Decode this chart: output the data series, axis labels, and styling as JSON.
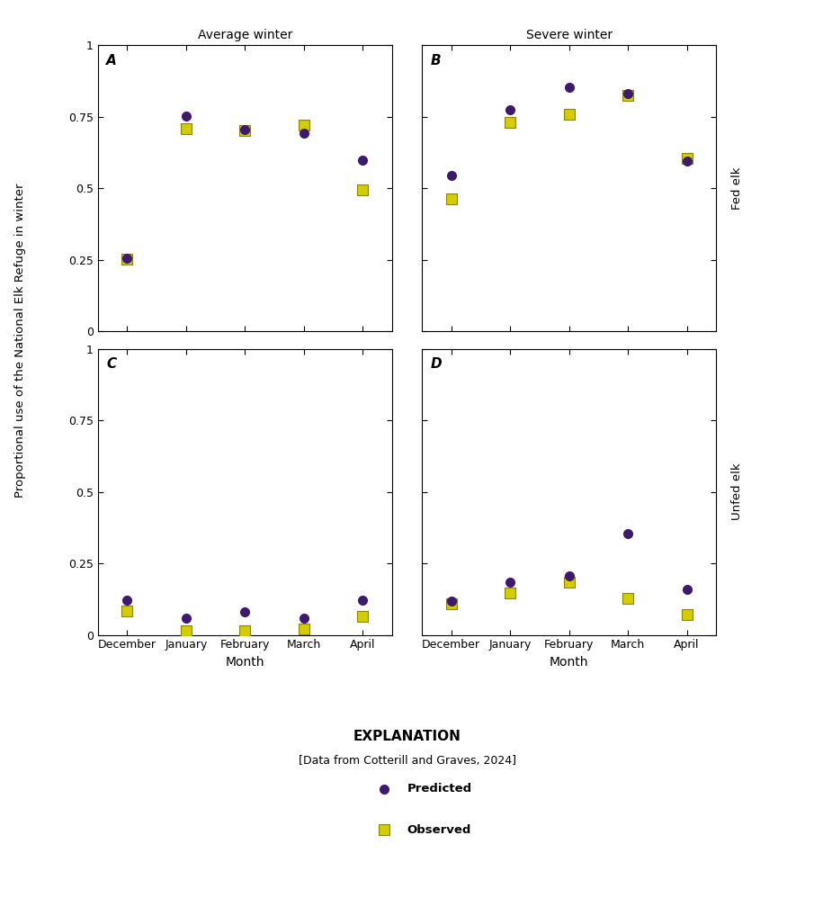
{
  "months": [
    "December",
    "January",
    "February",
    "March",
    "April"
  ],
  "panel_A": {
    "label": "A",
    "predicted": [
      0.255,
      0.752,
      0.705,
      0.693,
      0.6
    ],
    "observed": [
      0.253,
      0.71,
      0.703,
      0.72,
      0.495
    ]
  },
  "panel_B": {
    "label": "B",
    "predicted": [
      0.545,
      0.775,
      0.855,
      0.83,
      0.597
    ],
    "observed": [
      0.465,
      0.73,
      0.76,
      0.825,
      0.605
    ]
  },
  "panel_C": {
    "label": "C",
    "predicted": [
      0.12,
      0.058,
      0.08,
      0.058,
      0.12
    ],
    "observed": [
      0.085,
      0.013,
      0.015,
      0.02,
      0.065
    ]
  },
  "panel_D": {
    "label": "D",
    "predicted": [
      0.118,
      0.185,
      0.205,
      0.355,
      0.158
    ],
    "observed": [
      0.11,
      0.148,
      0.185,
      0.128,
      0.07
    ]
  },
  "col_titles": [
    "Average winter",
    "Severe winter"
  ],
  "row_labels": [
    "Fed elk",
    "Unfed elk"
  ],
  "ylabel": "Proportional use of the National Elk Refuge in winter",
  "xlabel": "Month",
  "ylim": [
    0,
    1
  ],
  "yticks": [
    0,
    0.25,
    0.5,
    0.75,
    1
  ],
  "ytick_labels": [
    "0",
    "0.25",
    "0.5",
    "0.75",
    "1"
  ],
  "predicted_color": "#3d1a6e",
  "observed_color": "#d4cc00",
  "observed_edge_color": "#888800",
  "explanation_title": "EXPLANATION",
  "explanation_sub": "[Data from Cotterill and Graves, 2024]",
  "legend_predicted": "Predicted",
  "legend_observed": "Observed",
  "marker_size_scatter": 64
}
